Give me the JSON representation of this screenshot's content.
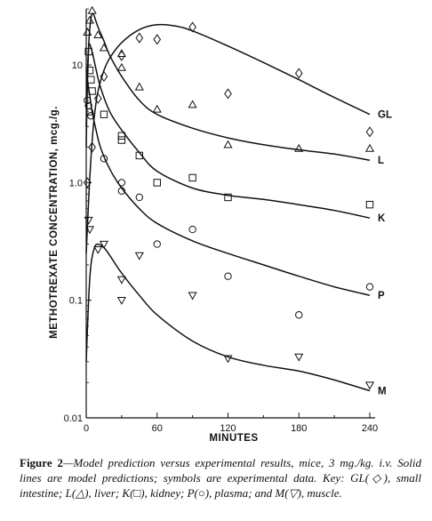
{
  "chart_data": {
    "type": "scatter",
    "xlabel": "MINUTES",
    "ylabel": "METHOTREXATE CONCENTRATION, mcg./g.",
    "xlim": [
      0,
      250
    ],
    "ylim": [
      0.01,
      30
    ],
    "yscale": "log",
    "xticks": [
      0,
      60,
      120,
      180,
      240
    ],
    "xtick_labels": [
      "0",
      "60",
      "120",
      "180",
      "240"
    ],
    "yticks": [
      0.01,
      0.1,
      1.0,
      10
    ],
    "ytick_labels": [
      "0.01",
      "0.1",
      "1.0",
      "10"
    ],
    "grid": false,
    "series": [
      {
        "name": "GL",
        "marker": "diamond",
        "points": [
          [
            1,
            1.0
          ],
          [
            5,
            2.0
          ],
          [
            10,
            5.2
          ],
          [
            15,
            8.0
          ],
          [
            30,
            12
          ],
          [
            45,
            17
          ],
          [
            60,
            16.5
          ],
          [
            90,
            21
          ],
          [
            120,
            5.7
          ],
          [
            180,
            8.5
          ],
          [
            240,
            2.7
          ]
        ],
        "curve": [
          [
            0,
            0.25
          ],
          [
            2,
            0.7
          ],
          [
            4,
            1.6
          ],
          [
            6,
            3.0
          ],
          [
            8,
            4.5
          ],
          [
            10,
            6.0
          ],
          [
            15,
            9.0
          ],
          [
            20,
            11.5
          ],
          [
            30,
            15.5
          ],
          [
            45,
            20
          ],
          [
            60,
            22
          ],
          [
            75,
            21.5
          ],
          [
            90,
            19.5
          ],
          [
            120,
            14.5
          ],
          [
            150,
            10.5
          ],
          [
            180,
            7.5
          ],
          [
            210,
            5.3
          ],
          [
            240,
            3.8
          ]
        ]
      },
      {
        "name": "L",
        "marker": "triangle",
        "points": [
          [
            1,
            19
          ],
          [
            3,
            24
          ],
          [
            5,
            29
          ],
          [
            10,
            18
          ],
          [
            15,
            14
          ],
          [
            30,
            12.5
          ],
          [
            30,
            9.5
          ],
          [
            45,
            6.5
          ],
          [
            60,
            4.2
          ],
          [
            90,
            4.6
          ],
          [
            120,
            2.1
          ],
          [
            180,
            1.95
          ],
          [
            240,
            1.95
          ]
        ],
        "curve": [
          [
            0,
            3
          ],
          [
            2,
            14
          ],
          [
            4,
            25
          ],
          [
            6,
            27
          ],
          [
            8,
            24
          ],
          [
            10,
            21
          ],
          [
            15,
            16
          ],
          [
            20,
            12
          ],
          [
            30,
            8
          ],
          [
            45,
            5
          ],
          [
            60,
            3.8
          ],
          [
            90,
            2.9
          ],
          [
            120,
            2.4
          ],
          [
            150,
            2.1
          ],
          [
            180,
            1.9
          ],
          [
            210,
            1.75
          ],
          [
            240,
            1.55
          ]
        ]
      },
      {
        "name": "K",
        "marker": "square",
        "points": [
          [
            2,
            13
          ],
          [
            3,
            9
          ],
          [
            4,
            7.5
          ],
          [
            5,
            6
          ],
          [
            15,
            3.8
          ],
          [
            30,
            2.5
          ],
          [
            30,
            2.3
          ],
          [
            45,
            1.7
          ],
          [
            60,
            1.0
          ],
          [
            90,
            1.1
          ],
          [
            120,
            0.75
          ],
          [
            240,
            0.65
          ]
        ],
        "curve": [
          [
            0,
            2
          ],
          [
            1,
            8
          ],
          [
            2,
            14
          ],
          [
            3,
            15
          ],
          [
            5,
            13
          ],
          [
            8,
            9.5
          ],
          [
            12,
            6.5
          ],
          [
            20,
            4
          ],
          [
            30,
            2.8
          ],
          [
            45,
            1.8
          ],
          [
            60,
            1.25
          ],
          [
            90,
            0.9
          ],
          [
            120,
            0.78
          ],
          [
            150,
            0.72
          ],
          [
            180,
            0.65
          ],
          [
            210,
            0.58
          ],
          [
            240,
            0.5
          ]
        ]
      },
      {
        "name": "P",
        "marker": "circle",
        "points": [
          [
            1,
            5.0
          ],
          [
            2,
            4.5
          ],
          [
            3,
            4.0
          ],
          [
            4,
            3.7
          ],
          [
            15,
            1.6
          ],
          [
            30,
            1.0
          ],
          [
            30,
            0.85
          ],
          [
            45,
            0.75
          ],
          [
            60,
            0.3
          ],
          [
            90,
            0.4
          ],
          [
            120,
            0.16
          ],
          [
            180,
            0.075
          ],
          [
            240,
            0.13
          ]
        ],
        "curve": [
          [
            0,
            9
          ],
          [
            1,
            7.5
          ],
          [
            3,
            5.5
          ],
          [
            5,
            4
          ],
          [
            8,
            2.9
          ],
          [
            12,
            2.0
          ],
          [
            20,
            1.3
          ],
          [
            30,
            0.9
          ],
          [
            45,
            0.6
          ],
          [
            60,
            0.45
          ],
          [
            90,
            0.32
          ],
          [
            120,
            0.25
          ],
          [
            150,
            0.2
          ],
          [
            180,
            0.16
          ],
          [
            210,
            0.13
          ],
          [
            240,
            0.11
          ]
        ]
      },
      {
        "name": "M",
        "marker": "triangle-down",
        "points": [
          [
            2,
            0.48
          ],
          [
            3,
            0.4
          ],
          [
            10,
            0.27
          ],
          [
            15,
            0.3
          ],
          [
            30,
            0.15
          ],
          [
            30,
            0.1
          ],
          [
            45,
            0.24
          ],
          [
            90,
            0.11
          ],
          [
            120,
            0.032
          ],
          [
            180,
            0.033
          ],
          [
            240,
            0.019
          ]
        ],
        "curve": [
          [
            0,
            0.03
          ],
          [
            2,
            0.1
          ],
          [
            4,
            0.2
          ],
          [
            7,
            0.28
          ],
          [
            10,
            0.3
          ],
          [
            15,
            0.28
          ],
          [
            20,
            0.24
          ],
          [
            30,
            0.17
          ],
          [
            45,
            0.11
          ],
          [
            60,
            0.075
          ],
          [
            90,
            0.045
          ],
          [
            120,
            0.033
          ],
          [
            150,
            0.028
          ],
          [
            180,
            0.025
          ],
          [
            210,
            0.021
          ],
          [
            240,
            0.017
          ]
        ]
      }
    ]
  },
  "caption": {
    "label": "Figure 2",
    "text": "—Model prediction versus experimental results, mice, 3 mg./kg. i.v. Solid lines are model predictions; symbols are experimental data. Key: GL(◇), small intestine; L(△), liver; K(□), kidney; P(○), plasma; and M(▽), muscle."
  }
}
